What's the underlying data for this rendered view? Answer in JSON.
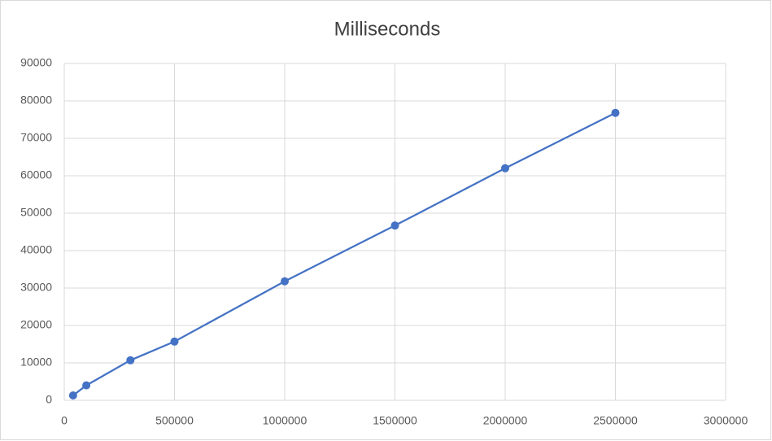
{
  "chart_data": {
    "type": "line",
    "title": "Milliseconds",
    "x": [
      40000,
      100000,
      300000,
      500000,
      1000000,
      1500000,
      2000000,
      2500000
    ],
    "series": [
      {
        "color": "#4472c4",
        "values": [
          1300,
          4000,
          10700,
          15700,
          31800,
          46700,
          62000,
          76800
        ]
      }
    ],
    "xlim": [
      0,
      3000000
    ],
    "xticks": [
      0,
      500000,
      1000000,
      1500000,
      2000000,
      2500000,
      3000000
    ],
    "ylim": [
      0,
      90000
    ],
    "yticks": [
      0,
      10000,
      20000,
      30000,
      40000,
      50000,
      60000,
      70000,
      80000,
      90000
    ],
    "grid": true,
    "markers": true
  }
}
